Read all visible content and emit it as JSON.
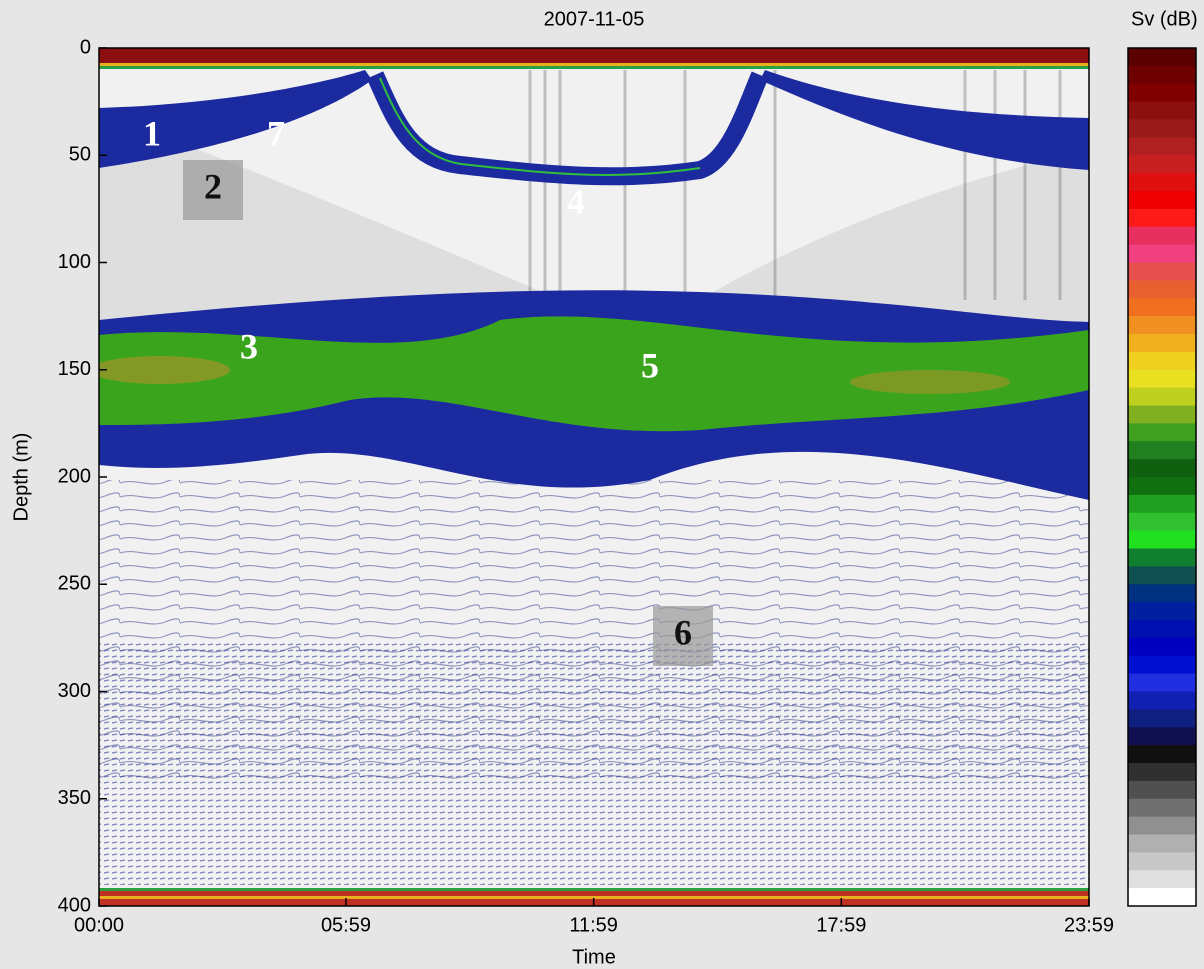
{
  "chart_data": {
    "type": "heatmap",
    "title": "2007-11-05",
    "xlabel": "Time",
    "ylabel": "Depth (m)",
    "xlim": [
      0,
      1439
    ],
    "xticks": [
      {
        "value": 0,
        "label": "00:00"
      },
      {
        "value": 359,
        "label": "05:59"
      },
      {
        "value": 719,
        "label": "11:59"
      },
      {
        "value": 1079,
        "label": "17:59"
      },
      {
        "value": 1439,
        "label": "23:59"
      }
    ],
    "ylim": [
      0,
      400
    ],
    "y_inverted": true,
    "yticks": [
      0,
      50,
      100,
      150,
      200,
      250,
      300,
      350,
      400
    ],
    "colorbar": {
      "label": "Sv (dB)",
      "colors": [
        "#5a0000",
        "#6e0000",
        "#800000",
        "#8c1010",
        "#9a1a1a",
        "#b02020",
        "#c82020",
        "#e01010",
        "#f00000",
        "#ff1a1a",
        "#e83060",
        "#f04080",
        "#e85050",
        "#e86030",
        "#f07020",
        "#f09020",
        "#f0b020",
        "#f0d020",
        "#e8e020",
        "#c0d020",
        "#80b020",
        "#40a020",
        "#208020",
        "#106010",
        "#107010",
        "#20a020",
        "#30c030",
        "#20e020",
        "#108030",
        "#105050",
        "#003080",
        "#0020a0",
        "#0010b0",
        "#0000c0",
        "#0010d0",
        "#2030e0",
        "#1020b0",
        "#102080",
        "#101050",
        "#101010",
        "#303030",
        "#505050",
        "#707070",
        "#909090",
        "#b0b0b0",
        "#c8c8c8",
        "#e0e0e0",
        "#ffffff"
      ]
    },
    "annotations": [
      "1",
      "7",
      "2",
      "4",
      "3",
      "5",
      "6"
    ]
  }
}
